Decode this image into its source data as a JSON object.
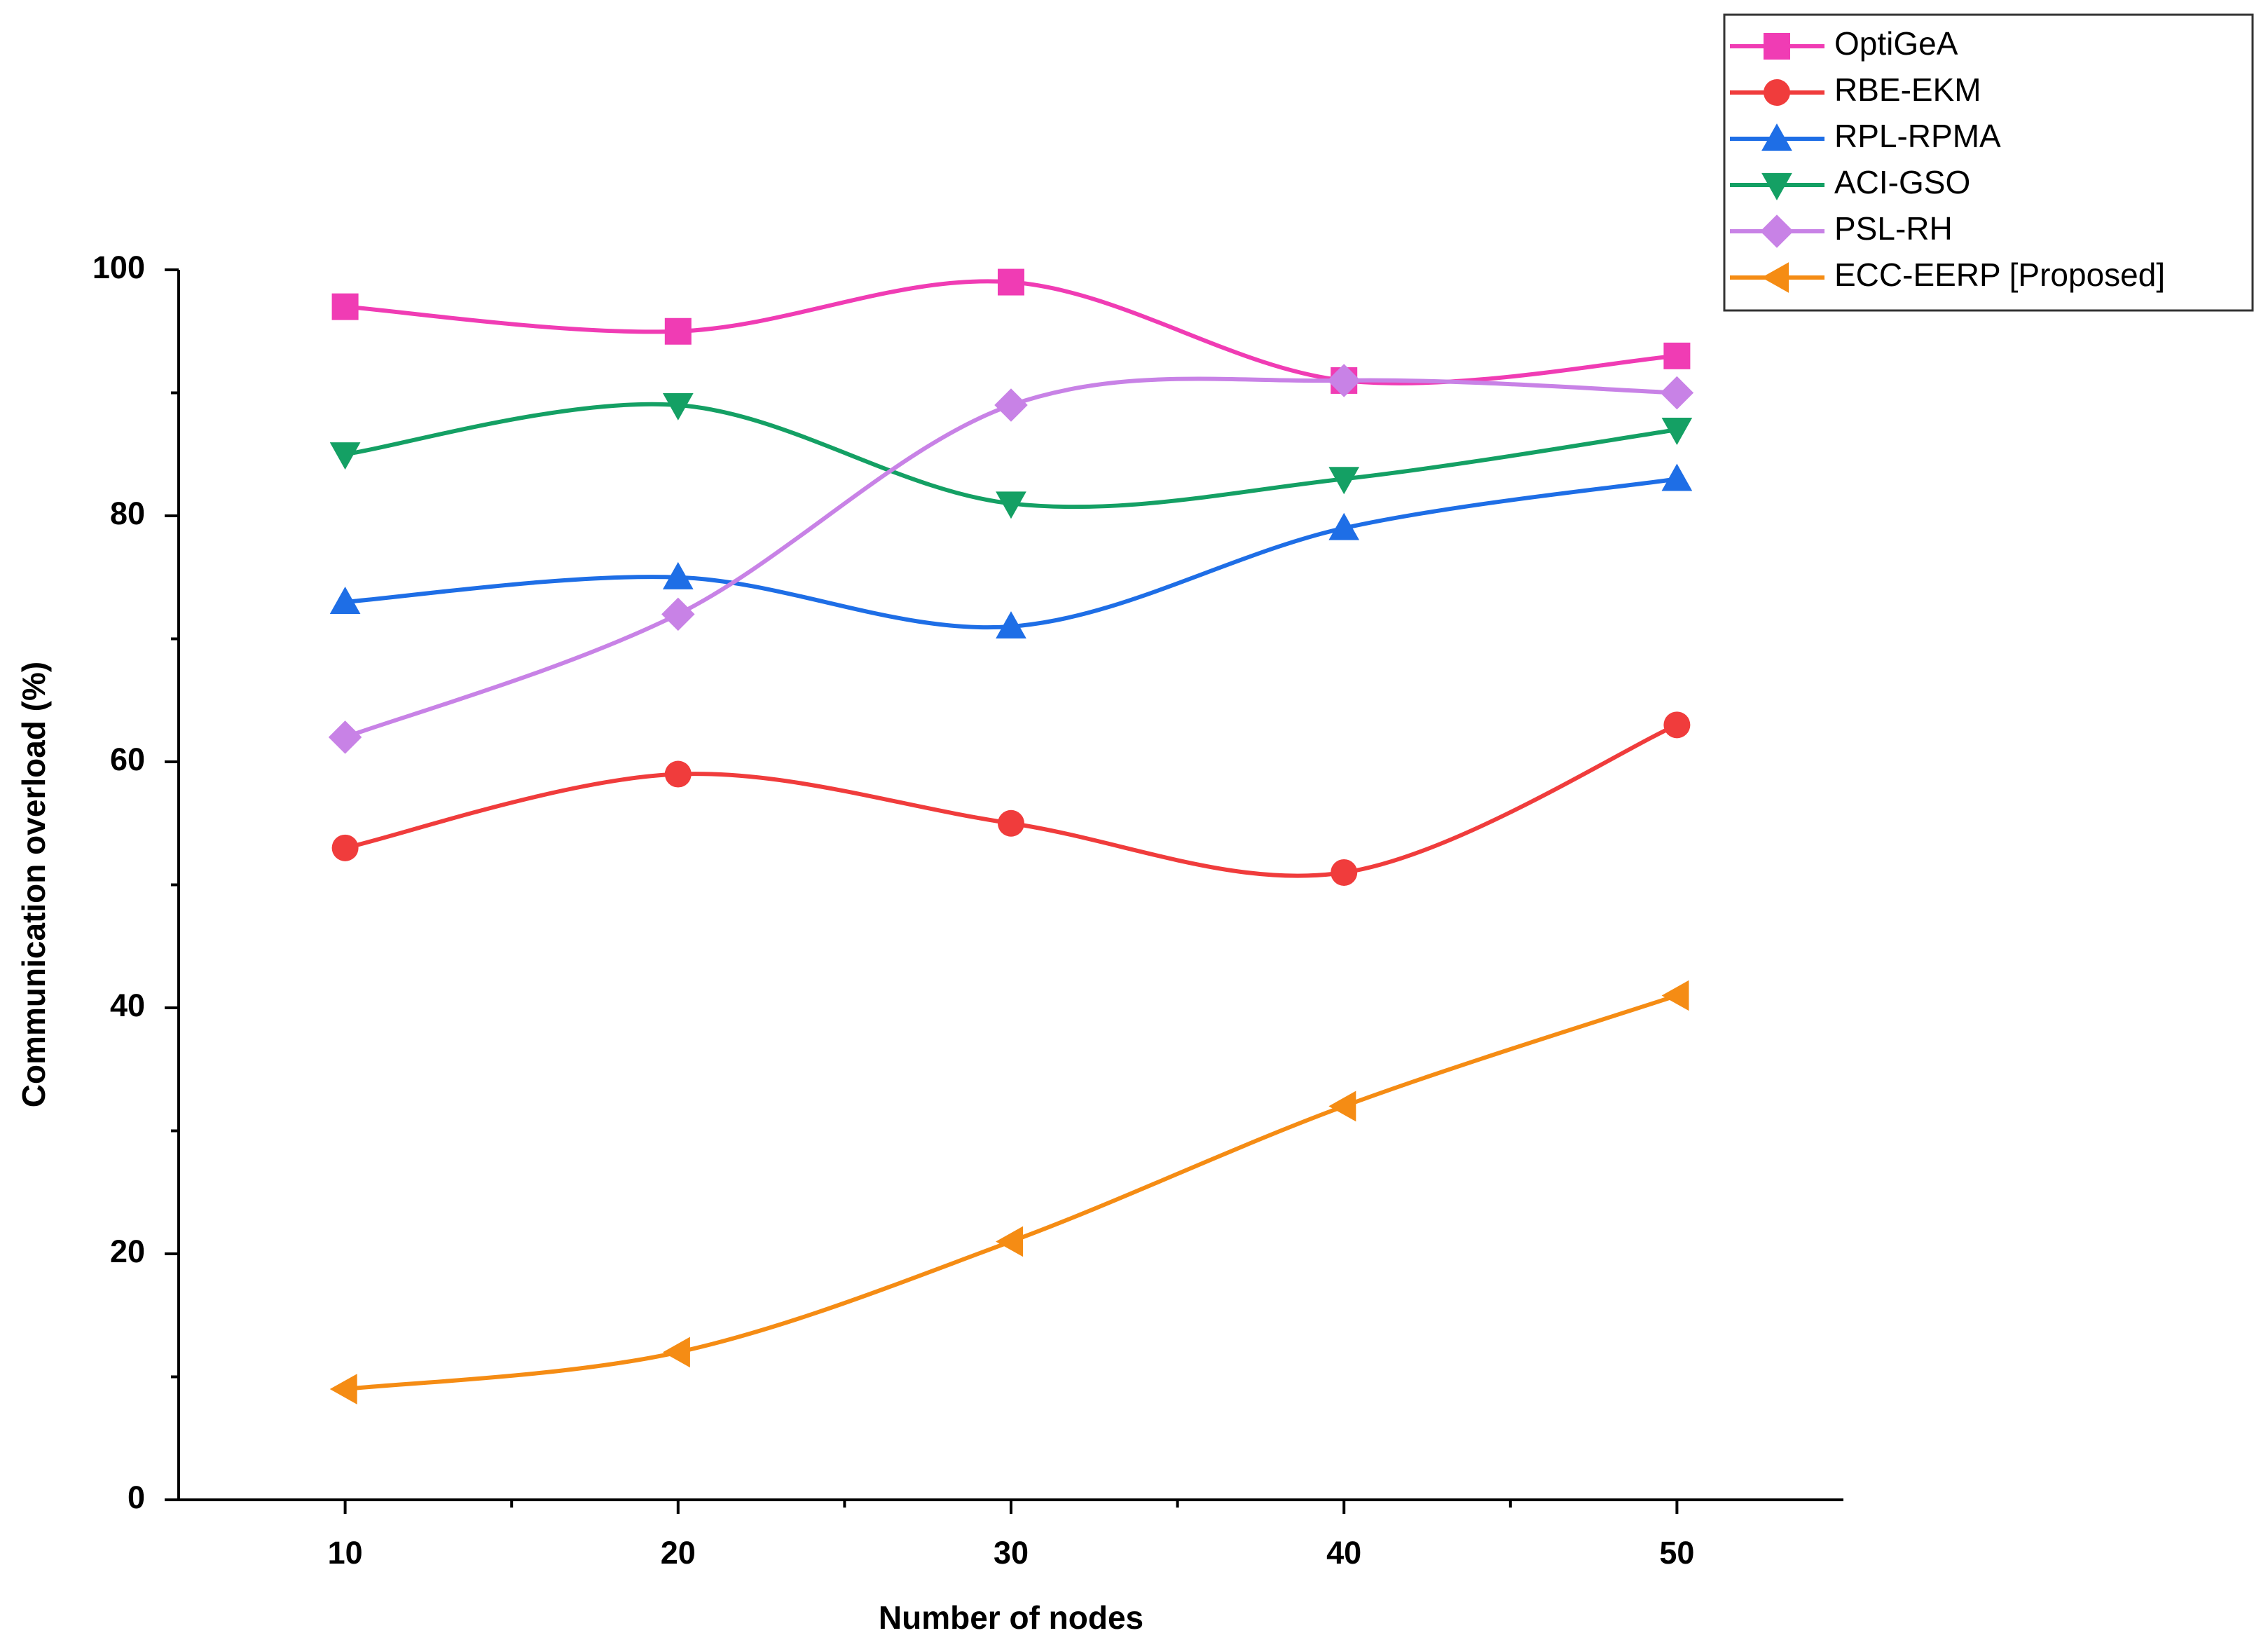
{
  "chart_data": {
    "type": "line",
    "x_label": "Number of nodes",
    "y_label": "Communication overload (%)",
    "x": [
      10,
      20,
      30,
      40,
      50
    ],
    "xlim": [
      5,
      55
    ],
    "xticks": [
      10,
      20,
      30,
      40,
      50
    ],
    "xminorticks": [
      15,
      25,
      35,
      45
    ],
    "ylim": [
      0,
      100
    ],
    "yticks": [
      0,
      20,
      40,
      60,
      80,
      100
    ],
    "yminorticks": [
      10,
      30,
      50,
      70,
      90
    ],
    "smooth": true,
    "legend": "top-right",
    "series": [
      {
        "name": "OptiGeA",
        "color": "#f03cb4",
        "marker": "square",
        "values": [
          97,
          95,
          99,
          91,
          93
        ]
      },
      {
        "name": "RBE-EKM",
        "color": "#f03c3c",
        "marker": "circle",
        "values": [
          53,
          59,
          55,
          51,
          63
        ]
      },
      {
        "name": "RPL-RPMA",
        "color": "#1e6ee6",
        "marker": "triangle-up",
        "values": [
          73,
          75,
          71,
          79,
          83
        ]
      },
      {
        "name": "ACI-GSO",
        "color": "#14a064",
        "marker": "triangle-down",
        "values": [
          85,
          89,
          81,
          83,
          87
        ]
      },
      {
        "name": "PSL-RH",
        "color": "#c882e6",
        "marker": "diamond",
        "values": [
          62,
          72,
          89,
          91,
          90
        ]
      },
      {
        "name": "ECC-EERP [Proposed]",
        "color": "#f58c14",
        "marker": "triangle-left",
        "values": [
          9,
          12,
          21,
          32,
          41
        ]
      }
    ]
  }
}
